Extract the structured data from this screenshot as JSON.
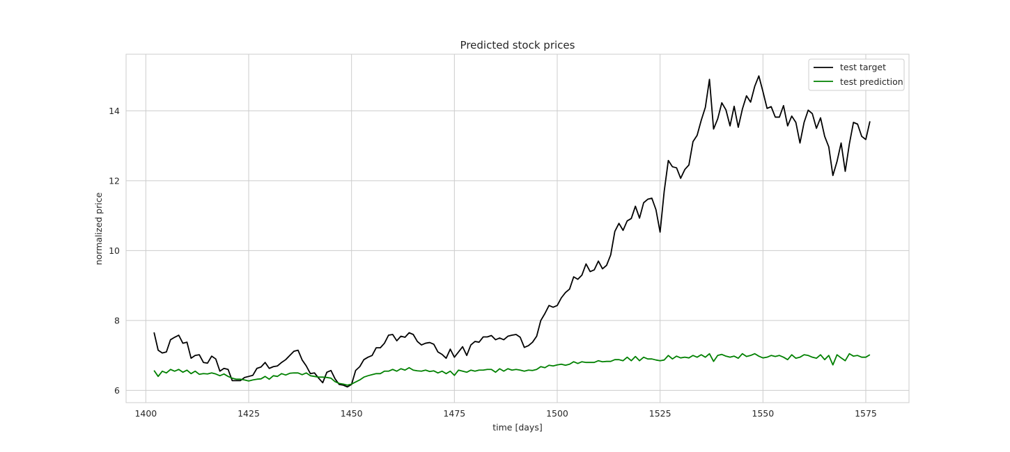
{
  "chart_data": {
    "type": "line",
    "title": "Predicted stock prices",
    "xlabel": "time [days]",
    "ylabel": "normalized price",
    "xlim": [
      1395.2,
      1585.5
    ],
    "ylim": [
      5.65,
      15.62
    ],
    "xticks": [
      1400,
      1425,
      1450,
      1475,
      1500,
      1525,
      1550,
      1575
    ],
    "yticks": [
      6,
      8,
      10,
      12,
      14
    ],
    "grid": true,
    "legend_position": "upper right",
    "x_start": 1402,
    "series": [
      {
        "name": "test target",
        "color": "#000000",
        "values": [
          7.66,
          7.15,
          7.07,
          7.1,
          7.45,
          7.52,
          7.58,
          7.35,
          7.38,
          6.92,
          7.0,
          7.02,
          6.8,
          6.78,
          6.98,
          6.9,
          6.55,
          6.63,
          6.6,
          6.28,
          6.28,
          6.28,
          6.37,
          6.4,
          6.43,
          6.63,
          6.67,
          6.8,
          6.63,
          6.68,
          6.7,
          6.8,
          6.88,
          7.0,
          7.12,
          7.15,
          6.87,
          6.7,
          6.48,
          6.5,
          6.35,
          6.22,
          6.52,
          6.57,
          6.33,
          6.17,
          6.15,
          6.1,
          6.17,
          6.57,
          6.68,
          6.88,
          6.95,
          7.0,
          7.22,
          7.22,
          7.35,
          7.58,
          7.6,
          7.42,
          7.55,
          7.52,
          7.65,
          7.6,
          7.4,
          7.3,
          7.35,
          7.37,
          7.32,
          7.1,
          7.03,
          6.92,
          7.18,
          6.95,
          7.1,
          7.25,
          7.0,
          7.3,
          7.4,
          7.38,
          7.53,
          7.53,
          7.57,
          7.45,
          7.5,
          7.45,
          7.55,
          7.58,
          7.6,
          7.52,
          7.23,
          7.28,
          7.38,
          7.55,
          8.0,
          8.2,
          8.43,
          8.38,
          8.43,
          8.65,
          8.8,
          8.9,
          9.25,
          9.18,
          9.3,
          9.62,
          9.4,
          9.45,
          9.7,
          9.48,
          9.58,
          9.88,
          10.55,
          10.78,
          10.58,
          10.85,
          10.92,
          11.27,
          10.93,
          11.37,
          11.47,
          11.5,
          11.17,
          10.53,
          11.7,
          12.58,
          12.4,
          12.37,
          12.07,
          12.32,
          12.45,
          13.12,
          13.3,
          13.73,
          14.1,
          14.9,
          13.48,
          13.77,
          14.23,
          14.03,
          13.57,
          14.13,
          13.53,
          14.05,
          14.43,
          14.25,
          14.7,
          15.0,
          14.55,
          14.07,
          14.12,
          13.82,
          13.82,
          14.15,
          13.57,
          13.85,
          13.67,
          13.08,
          13.67,
          14.02,
          13.92,
          13.5,
          13.8,
          13.27,
          12.97,
          12.15,
          12.55,
          13.08,
          12.27,
          13.05,
          13.67,
          13.62,
          13.27,
          13.18,
          13.7
        ]
      },
      {
        "name": "test prediction",
        "color": "#008000",
        "values": [
          6.57,
          6.4,
          6.55,
          6.5,
          6.6,
          6.55,
          6.6,
          6.52,
          6.58,
          6.48,
          6.55,
          6.46,
          6.48,
          6.47,
          6.5,
          6.47,
          6.42,
          6.47,
          6.4,
          6.35,
          6.32,
          6.32,
          6.3,
          6.27,
          6.3,
          6.32,
          6.33,
          6.4,
          6.32,
          6.42,
          6.4,
          6.48,
          6.44,
          6.49,
          6.5,
          6.5,
          6.45,
          6.5,
          6.42,
          6.4,
          6.38,
          6.38,
          6.37,
          6.35,
          6.25,
          6.2,
          6.18,
          6.15,
          6.18,
          6.24,
          6.3,
          6.38,
          6.42,
          6.45,
          6.48,
          6.48,
          6.55,
          6.55,
          6.6,
          6.55,
          6.62,
          6.58,
          6.65,
          6.58,
          6.56,
          6.55,
          6.58,
          6.54,
          6.56,
          6.5,
          6.55,
          6.48,
          6.55,
          6.43,
          6.58,
          6.55,
          6.52,
          6.58,
          6.55,
          6.58,
          6.58,
          6.6,
          6.6,
          6.52,
          6.62,
          6.55,
          6.62,
          6.58,
          6.6,
          6.58,
          6.55,
          6.58,
          6.57,
          6.6,
          6.68,
          6.65,
          6.72,
          6.7,
          6.73,
          6.75,
          6.72,
          6.75,
          6.82,
          6.77,
          6.82,
          6.8,
          6.8,
          6.8,
          6.85,
          6.82,
          6.83,
          6.83,
          6.88,
          6.88,
          6.85,
          6.95,
          6.85,
          6.97,
          6.85,
          6.95,
          6.9,
          6.9,
          6.87,
          6.85,
          6.87,
          7.0,
          6.9,
          6.98,
          6.93,
          6.95,
          6.93,
          7.0,
          6.95,
          7.02,
          6.95,
          7.05,
          6.83,
          7.0,
          7.03,
          6.98,
          6.95,
          6.98,
          6.92,
          7.05,
          6.97,
          7.0,
          7.05,
          6.98,
          6.93,
          6.95,
          7.0,
          6.97,
          7.0,
          6.95,
          6.88,
          7.02,
          6.92,
          6.95,
          7.02,
          7.0,
          6.95,
          6.92,
          7.02,
          6.88,
          7.0,
          6.73,
          7.02,
          6.93,
          6.85,
          7.05,
          6.98,
          7.0,
          6.95,
          6.95,
          7.02
        ]
      }
    ]
  }
}
